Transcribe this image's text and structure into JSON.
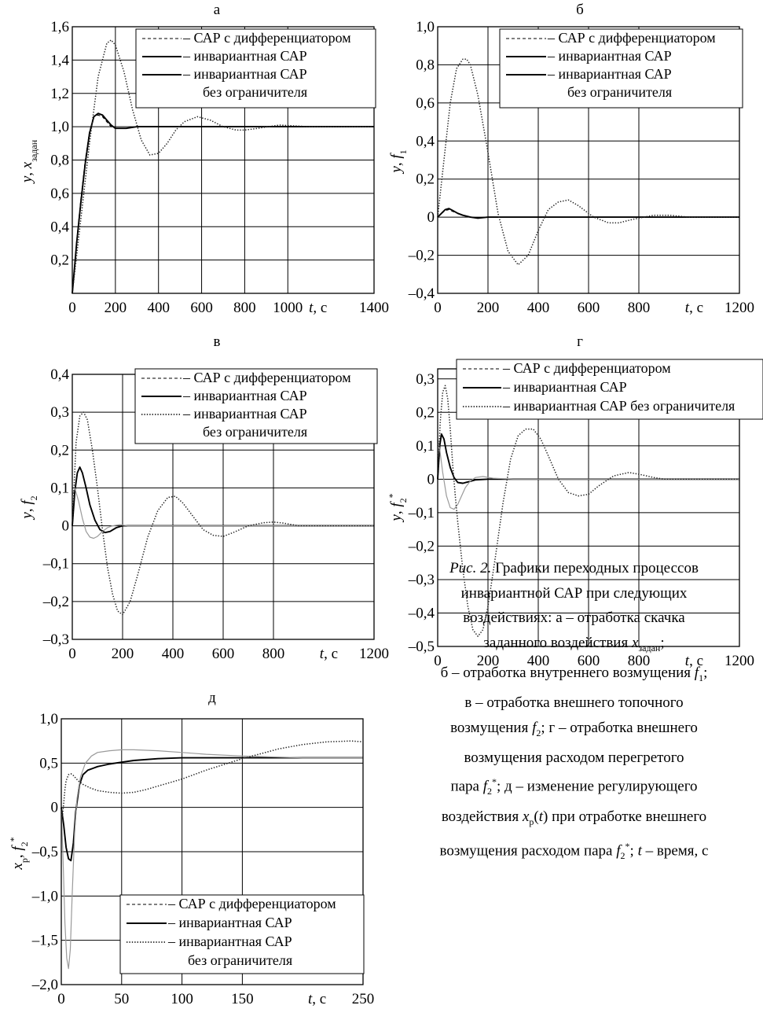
{
  "caption": {
    "lines": [
      "Рис. 2. Графики переходных процессов",
      "инвариантной САР при следующих",
      "воздействиях: а – отработка скачка",
      "заданного воздействия xзадан;",
      "б – отработка внутреннего возмущения f1;",
      "в – отработка внешнего топочного",
      "возмущения f2; г – отработка внешнего",
      "возмущения расходом перегретого",
      "пара f2*; д – изменение регулирующего",
      "воздействия xр(t) при отработке внешнего",
      "возмущения расходом пара f2*; t – время, с"
    ]
  },
  "chart_data": [
    {
      "id": "a",
      "panel_label": "а",
      "type": "line",
      "ylabel": "y, xзадан",
      "xlabel": "t, с",
      "xlim": [
        0,
        1400
      ],
      "ylim": [
        0,
        1.6
      ],
      "xticks": [
        0,
        200,
        400,
        600,
        800,
        1000,
        1400
      ],
      "xtick_labels": [
        "0",
        "200",
        "400",
        "600",
        "800",
        "1000",
        "1400"
      ],
      "yticks": [
        0.2,
        0.4,
        0.6,
        0.8,
        1.0,
        1.2,
        1.4,
        1.6
      ],
      "ytick_labels": [
        "0,2",
        "0,4",
        "0,6",
        "0,8",
        "1,0",
        "1,2",
        "1,4",
        "1,6"
      ],
      "grid": true,
      "legend_position": "top-right",
      "legend": [
        {
          "symbol": "dashed",
          "label": "– САР с дифференциатором"
        },
        {
          "symbol": "solid",
          "label": "– инвариантная САР"
        },
        {
          "symbol": "solid",
          "label": "– инвариантная САР"
        },
        {
          "symbol": "none",
          "label": "без ограничителя"
        }
      ],
      "series": [
        {
          "style": "solid",
          "x": [
            0,
            20,
            40,
            60,
            80,
            100,
            120,
            140,
            160,
            180,
            200,
            250,
            300,
            400,
            600,
            800,
            1400
          ],
          "y": [
            0,
            0.3,
            0.55,
            0.78,
            0.96,
            1.06,
            1.08,
            1.07,
            1.04,
            1.01,
            0.99,
            0.99,
            1.0,
            1.0,
            1.0,
            1.0,
            1.0
          ]
        },
        {
          "style": "dashed",
          "x": [
            0,
            20,
            40,
            60,
            80,
            100,
            120,
            140,
            160,
            180,
            200,
            250,
            300,
            400,
            600,
            800,
            1400
          ],
          "y": [
            0,
            0.31,
            0.57,
            0.8,
            0.97,
            1.06,
            1.07,
            1.06,
            1.03,
            1.0,
            0.99,
            0.99,
            1.0,
            1.0,
            1.0,
            1.0,
            1.0
          ]
        },
        {
          "style": "dotted",
          "x": [
            0,
            40,
            80,
            120,
            160,
            180,
            200,
            240,
            280,
            320,
            360,
            400,
            440,
            480,
            520,
            580,
            640,
            700,
            760,
            800,
            860,
            960,
            1100,
            1400
          ],
          "y": [
            0,
            0.45,
            0.9,
            1.3,
            1.5,
            1.52,
            1.49,
            1.33,
            1.1,
            0.92,
            0.83,
            0.84,
            0.9,
            0.98,
            1.03,
            1.06,
            1.04,
            1.0,
            0.98,
            0.98,
            0.99,
            1.01,
            1.0,
            1.0
          ]
        }
      ]
    },
    {
      "id": "b",
      "panel_label": "б",
      "type": "line",
      "ylabel": "y, f1",
      "xlabel": "t, с",
      "xlim": [
        0,
        1200
      ],
      "ylim": [
        -0.4,
        1.0
      ],
      "xticks": [
        0,
        200,
        400,
        600,
        800,
        1200
      ],
      "xtick_labels": [
        "0",
        "200",
        "400",
        "600",
        "800",
        "1200"
      ],
      "yticks": [
        -0.4,
        -0.2,
        0,
        0.2,
        0.4,
        0.6,
        0.8,
        1.0
      ],
      "ytick_labels": [
        "–0,4",
        "–0,2",
        "0",
        "0,2",
        "0,4",
        "0,6",
        "0,8",
        "1,0"
      ],
      "grid": true,
      "legend_position": "top-right",
      "legend": [
        {
          "symbol": "dashed",
          "label": "– САР с дифференциатором"
        },
        {
          "symbol": "solid",
          "label": "– инвариантная САР"
        },
        {
          "symbol": "solid",
          "label": "– инвариантная САР"
        },
        {
          "symbol": "none",
          "label": "без ограничителя"
        }
      ],
      "series": [
        {
          "style": "solid",
          "x": [
            0,
            15,
            30,
            45,
            60,
            80,
            100,
            130,
            160,
            200,
            300,
            1200
          ],
          "y": [
            0,
            0.02,
            0.04,
            0.045,
            0.035,
            0.02,
            0.01,
            0.0,
            -0.005,
            0.0,
            0.0,
            0.0
          ]
        },
        {
          "style": "dashed",
          "x": [
            0,
            15,
            30,
            45,
            60,
            80,
            100,
            130,
            160,
            200,
            300,
            1200
          ],
          "y": [
            0,
            0.02,
            0.035,
            0.04,
            0.03,
            0.02,
            0.01,
            0.0,
            -0.005,
            0.0,
            0.0,
            0.0
          ]
        },
        {
          "style": "dotted",
          "x": [
            0,
            25,
            50,
            75,
            100,
            115,
            130,
            160,
            200,
            240,
            280,
            320,
            360,
            400,
            440,
            480,
            520,
            560,
            620,
            680,
            720,
            780,
            860,
            920,
            1000,
            1100,
            1200
          ],
          "y": [
            0,
            0.3,
            0.6,
            0.78,
            0.83,
            0.83,
            0.8,
            0.64,
            0.34,
            0.02,
            -0.18,
            -0.25,
            -0.2,
            -0.07,
            0.04,
            0.08,
            0.09,
            0.06,
            0.0,
            -0.03,
            -0.03,
            -0.01,
            0.01,
            0.01,
            0.0,
            0.0,
            0.0
          ]
        }
      ]
    },
    {
      "id": "v",
      "panel_label": "в",
      "type": "line",
      "ylabel": "y, f2",
      "xlabel": "t, с",
      "xlim": [
        0,
        1200
      ],
      "ylim": [
        -0.3,
        0.4
      ],
      "xticks": [
        0,
        200,
        400,
        600,
        800,
        1200
      ],
      "xtick_labels": [
        "0",
        "200",
        "400",
        "600",
        "800",
        "1200"
      ],
      "yticks": [
        -0.3,
        -0.2,
        -0.1,
        0,
        0.1,
        0.2,
        0.3,
        0.4
      ],
      "ytick_labels": [
        "–0,3",
        "–0,2",
        "–0,1",
        "0",
        "0,1",
        "0,2",
        "0,3",
        "0,4"
      ],
      "grid": true,
      "legend_position": "top-right",
      "legend": [
        {
          "symbol": "dashed",
          "label": "– САР с дифференциатором"
        },
        {
          "symbol": "solid",
          "label": "– инвариантная САР"
        },
        {
          "symbol": "dotted",
          "label": "– инвариантная САР"
        },
        {
          "symbol": "none",
          "label": "без ограничителя"
        }
      ],
      "series": [
        {
          "style": "solid",
          "x": [
            0,
            10,
            20,
            30,
            40,
            55,
            70,
            90,
            110,
            130,
            150,
            175,
            200,
            250,
            300,
            1200
          ],
          "y": [
            0,
            0.09,
            0.14,
            0.155,
            0.14,
            0.1,
            0.055,
            0.015,
            -0.01,
            -0.018,
            -0.015,
            -0.005,
            0.0,
            0.0,
            0.0,
            0.0
          ]
        },
        {
          "style": "gray",
          "x": [
            0,
            10,
            25,
            40,
            55,
            70,
            85,
            100,
            120,
            140,
            160,
            190,
            220,
            300,
            1200
          ],
          "y": [
            0.08,
            0.1,
            0.065,
            0.02,
            -0.015,
            -0.03,
            -0.033,
            -0.028,
            -0.015,
            -0.005,
            0.0,
            0.003,
            0.0,
            0.0,
            0.0
          ]
        },
        {
          "style": "dotted",
          "x": [
            0,
            15,
            30,
            45,
            60,
            80,
            100,
            120,
            140,
            160,
            180,
            200,
            230,
            260,
            300,
            340,
            380,
            410,
            440,
            480,
            520,
            560,
            600,
            640,
            700,
            760,
            800,
            840,
            900,
            1000,
            1200
          ],
          "y": [
            0,
            0.22,
            0.29,
            0.3,
            0.28,
            0.2,
            0.1,
            -0.01,
            -0.11,
            -0.18,
            -0.225,
            -0.235,
            -0.2,
            -0.13,
            -0.03,
            0.04,
            0.075,
            0.078,
            0.06,
            0.025,
            -0.01,
            -0.025,
            -0.028,
            -0.018,
            0.0,
            0.008,
            0.01,
            0.007,
            0.0,
            0.0,
            0.0
          ]
        }
      ]
    },
    {
      "id": "g",
      "panel_label": "г",
      "type": "line",
      "ylabel": "y, f2*",
      "xlabel": "t, с",
      "xlim": [
        0,
        1200
      ],
      "ylim": [
        -0.5,
        0.33
      ],
      "xticks": [
        0,
        200,
        400,
        600,
        800,
        1200
      ],
      "xtick_labels": [
        "0",
        "200",
        "400",
        "600",
        "800",
        "1200"
      ],
      "yticks": [
        -0.5,
        -0.4,
        -0.3,
        -0.2,
        -0.1,
        0,
        0.1,
        0.2,
        0.3
      ],
      "ytick_labels": [
        "–0,5",
        "–0,4",
        "–0,3",
        "–0,2",
        "–0,1",
        "0",
        "0,1",
        "0,2",
        "0,3"
      ],
      "grid": true,
      "legend_position": "top-right",
      "legend": [
        {
          "symbol": "dashed",
          "label": "– САР с дифференциатором"
        },
        {
          "symbol": "solid",
          "label": "– инвариантная САР"
        },
        {
          "symbol": "dotted",
          "label": "– инвариантная САР без ограничителя"
        }
      ],
      "series": [
        {
          "style": "solid",
          "x": [
            0,
            8,
            15,
            25,
            35,
            50,
            65,
            80,
            100,
            120,
            150,
            200,
            300,
            1200
          ],
          "y": [
            0,
            0.1,
            0.135,
            0.12,
            0.08,
            0.035,
            0.005,
            -0.01,
            -0.012,
            -0.008,
            -0.002,
            0.0,
            0.0,
            0.0
          ]
        },
        {
          "style": "gray",
          "x": [
            0,
            8,
            20,
            35,
            50,
            65,
            80,
            95,
            110,
            130,
            150,
            180,
            220,
            300,
            1200
          ],
          "y": [
            0.12,
            0.09,
            0.02,
            -0.05,
            -0.085,
            -0.09,
            -0.075,
            -0.05,
            -0.025,
            -0.005,
            0.005,
            0.008,
            0.003,
            0.0,
            0.0
          ]
        },
        {
          "style": "dotted",
          "x": [
            0,
            10,
            20,
            30,
            40,
            50,
            60,
            70,
            80,
            100,
            120,
            140,
            160,
            180,
            200,
            230,
            260,
            290,
            320,
            350,
            380,
            410,
            440,
            480,
            520,
            560,
            600,
            640,
            700,
            760,
            800,
            860,
            900,
            1000,
            1200
          ],
          "y": [
            0,
            0.17,
            0.26,
            0.28,
            0.24,
            0.15,
            0.04,
            -0.05,
            -0.13,
            -0.27,
            -0.38,
            -0.45,
            -0.47,
            -0.45,
            -0.38,
            -0.23,
            -0.07,
            0.06,
            0.13,
            0.15,
            0.15,
            0.12,
            0.07,
            0.0,
            -0.04,
            -0.05,
            -0.045,
            -0.02,
            0.01,
            0.02,
            0.015,
            0.005,
            0.0,
            0.0,
            0.0
          ]
        }
      ]
    },
    {
      "id": "d",
      "panel_label": "д",
      "type": "line",
      "ylabel": "xр, f2*",
      "xlabel": "t, с",
      "xlim": [
        0,
        250
      ],
      "ylim": [
        -2.0,
        1.0
      ],
      "xticks": [
        0,
        50,
        100,
        150,
        250
      ],
      "xtick_labels": [
        "0",
        "50",
        "100",
        "150",
        "250"
      ],
      "yticks": [
        -2.0,
        -1.5,
        -1.0,
        -0.5,
        0,
        0.5,
        1.0
      ],
      "ytick_labels": [
        "–2,0",
        "–1,5",
        "–1,0",
        "–0,5",
        "0",
        "0,5",
        "1,0"
      ],
      "grid": true,
      "legend_position": "bottom-right",
      "legend": [
        {
          "symbol": "dashed",
          "label": "– САР с дифференциатором"
        },
        {
          "symbol": "solid",
          "label": "– инвариантная САР"
        },
        {
          "symbol": "dotted",
          "label": "– инвариантная САР"
        },
        {
          "symbol": "none",
          "label": "без ограничителя"
        }
      ],
      "series": [
        {
          "style": "solid",
          "x": [
            0,
            2,
            4,
            6,
            8,
            10,
            12,
            15,
            18,
            22,
            26,
            30,
            40,
            50,
            60,
            80,
            100,
            120,
            150,
            200,
            250
          ],
          "y": [
            0,
            -0.2,
            -0.45,
            -0.58,
            -0.6,
            -0.4,
            -0.05,
            0.25,
            0.37,
            0.42,
            0.44,
            0.46,
            0.49,
            0.51,
            0.53,
            0.55,
            0.56,
            0.56,
            0.56,
            0.56,
            0.56
          ]
        },
        {
          "style": "gray",
          "x": [
            0,
            1.5,
            3,
            4.5,
            6,
            7.5,
            9,
            11,
            13,
            16,
            20,
            25,
            30,
            40,
            50,
            60,
            80,
            100,
            120,
            150,
            200,
            250
          ],
          "y": [
            0,
            -0.6,
            -1.3,
            -1.7,
            -1.82,
            -1.6,
            -1.0,
            -0.3,
            0.1,
            0.35,
            0.5,
            0.58,
            0.62,
            0.64,
            0.65,
            0.65,
            0.64,
            0.62,
            0.6,
            0.58,
            0.56,
            0.56
          ]
        },
        {
          "style": "dotted",
          "x": [
            0,
            1,
            2,
            3,
            4,
            6,
            8,
            10,
            14,
            18,
            24,
            30,
            40,
            50,
            60,
            70,
            80,
            100,
            120,
            150,
            180,
            200,
            220,
            240,
            250
          ],
          "y": [
            0,
            -0.1,
            0.05,
            0.2,
            0.3,
            0.37,
            0.38,
            0.36,
            0.3,
            0.26,
            0.22,
            0.19,
            0.17,
            0.16,
            0.17,
            0.2,
            0.24,
            0.32,
            0.42,
            0.55,
            0.66,
            0.71,
            0.74,
            0.75,
            0.74
          ]
        }
      ]
    }
  ]
}
